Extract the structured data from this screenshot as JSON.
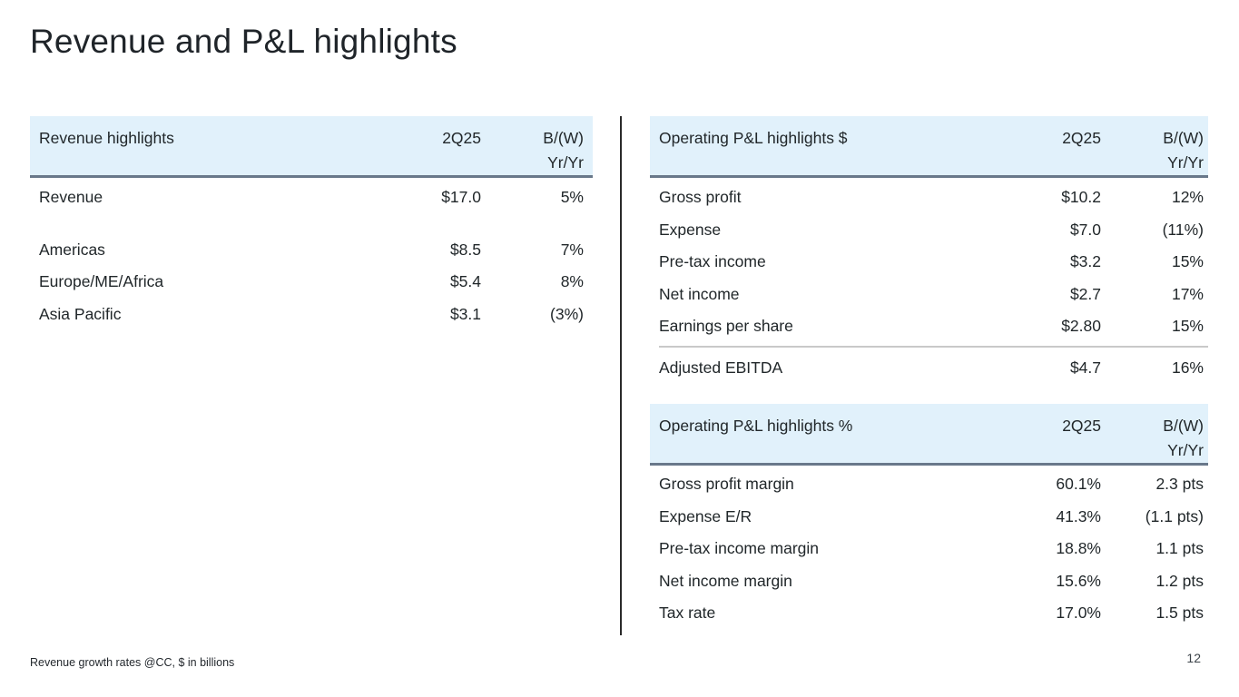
{
  "slide": {
    "title": "Revenue and P&L highlights",
    "footer_note": "Revenue growth rates @CC, $ in billions",
    "page_number": "12"
  },
  "colors": {
    "header_bg": "#e1f1fb",
    "header_rule": "#69788a",
    "subtotal_divider": "#c9c9c9",
    "panel_rule": "#2a2a2a",
    "text": "#21272a"
  },
  "revenue_table": {
    "title": "Revenue highlights",
    "col_period": "2Q25",
    "col_change_line1": "B/(W)",
    "col_change_line2": "Yr/Yr",
    "rows": [
      {
        "label": "Revenue",
        "value": "$17.0",
        "change": "5%"
      },
      {
        "label": "Americas",
        "value": "$8.5",
        "change": "7%"
      },
      {
        "label": "Europe/ME/Africa",
        "value": "$5.4",
        "change": "8%"
      },
      {
        "label": "Asia Pacific",
        "value": "$3.1",
        "change": "(3%)"
      }
    ]
  },
  "pnl_dollar_table": {
    "title": "Operating P&L highlights $",
    "col_period": "2Q25",
    "col_change_line1": "B/(W)",
    "col_change_line2": "Yr/Yr",
    "rows": [
      {
        "label": "Gross profit",
        "value": "$10.2",
        "change": "12%"
      },
      {
        "label": "Expense",
        "value": "$7.0",
        "change": "(11%)"
      },
      {
        "label": "Pre-tax income",
        "value": "$3.2",
        "change": "15%"
      },
      {
        "label": "Net income",
        "value": "$2.7",
        "change": "17%"
      },
      {
        "label": "Earnings per share",
        "value": "$2.80",
        "change": "15%"
      }
    ],
    "subtotal_row": {
      "label": "Adjusted EBITDA",
      "value": "$4.7",
      "change": "16%"
    }
  },
  "pnl_percent_table": {
    "title": "Operating P&L highlights %",
    "col_period": "2Q25",
    "col_change_line1": "B/(W)",
    "col_change_line2": "Yr/Yr",
    "rows": [
      {
        "label": "Gross profit margin",
        "value": "60.1%",
        "change": "2.3 pts"
      },
      {
        "label": "Expense E/R",
        "value": "41.3%",
        "change": "(1.1 pts)"
      },
      {
        "label": "Pre-tax income margin",
        "value": "18.8%",
        "change": "1.1 pts"
      },
      {
        "label": "Net income margin",
        "value": "15.6%",
        "change": "1.2 pts"
      },
      {
        "label": "Tax rate",
        "value": "17.0%",
        "change": "1.5 pts"
      }
    ]
  }
}
